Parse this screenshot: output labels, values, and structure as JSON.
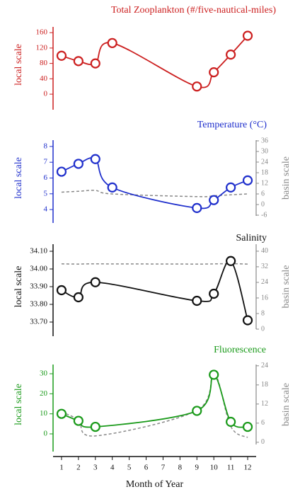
{
  "chart_data": [
    {
      "type": "line",
      "title": "Total Zooplankton (#/five-nautical-miles)",
      "ylabel": "local scale",
      "color": "#cc1f1f",
      "x": [
        1,
        2,
        3,
        4,
        9,
        10,
        11,
        12
      ],
      "ylim": [
        -22,
        175
      ],
      "yticks": [
        0,
        40,
        80,
        120,
        160
      ],
      "series": [
        {
          "color": "#cc1f1f",
          "values": [
            100,
            86,
            80,
            133,
            20,
            57,
            103,
            152
          ]
        }
      ]
    },
    {
      "type": "line",
      "title": "Temperature (°C)",
      "ylabel": "local scale",
      "y2label": "basin scale",
      "color": "#1f2fcc",
      "x": [
        1,
        2,
        3,
        4,
        9,
        10,
        11,
        12
      ],
      "ylim": [
        3.6,
        8.4
      ],
      "yticks": [
        4,
        5,
        6,
        7,
        8
      ],
      "y2lim": [
        -6.4,
        36.4
      ],
      "y2ticks": [
        -6,
        0,
        6,
        12,
        18,
        24,
        30,
        36
      ],
      "series": [
        {
          "color": "#1f2fcc",
          "values": [
            6.4,
            6.9,
            7.2,
            5.4,
            4.1,
            4.6,
            5.4,
            5.85
          ]
        },
        {
          "color": "#888888",
          "style": "dashed",
          "axis": "y2",
          "values": [
            7,
            7.5,
            8,
            6,
            4.5,
            5,
            5.5,
            6
          ]
        }
      ]
    },
    {
      "type": "line",
      "title": "Salinity",
      "ylabel": "local scale",
      "y2label": "basin scale",
      "color": "#111111",
      "x": [
        1,
        2,
        3,
        9,
        10,
        11,
        12
      ],
      "ylim": [
        33.66,
        34.14
      ],
      "yticks": [
        {
          "value": 33.7,
          "label": "33.70"
        },
        {
          "value": 33.8,
          "label": "33.80"
        },
        {
          "value": 33.9,
          "label": "33.90"
        },
        {
          "value": 34,
          "label": "34.00"
        },
        {
          "value": 34.1,
          "label": "34.10"
        }
      ],
      "y2lim": [
        0,
        43.6
      ],
      "y2ticks": [
        0,
        8,
        16,
        24,
        32,
        40
      ],
      "series": [
        {
          "color": "#111111",
          "values": [
            33.88,
            33.84,
            33.925,
            33.82,
            33.86,
            34.045,
            33.71
          ]
        },
        {
          "color": "#888888",
          "style": "dashed",
          "axis": "y2",
          "values": [
            33.5,
            33.4,
            33.5,
            33.4,
            33.5,
            33.6,
            33.4
          ]
        }
      ]
    },
    {
      "type": "line",
      "title": "Fluorescence",
      "ylabel": "local scale",
      "y2label": "basin scale",
      "color": "#1a9a1a",
      "x": [
        1,
        2,
        3,
        9,
        10,
        11,
        12
      ],
      "ylim": [
        -5.3,
        34.6
      ],
      "yticks": [
        0,
        10,
        20,
        30
      ],
      "y2lim": [
        -0.7,
        24.4
      ],
      "y2ticks": [
        0,
        6,
        12,
        18,
        24
      ],
      "xlim": [
        0.5,
        12.5
      ],
      "xticks": [
        1,
        2,
        3,
        4,
        5,
        6,
        7,
        8,
        9,
        10,
        11,
        12
      ],
      "xlabel": "Month of Year",
      "series": [
        {
          "color": "#1a9a1a",
          "values": [
            10,
            6.5,
            3.5,
            11.5,
            29.5,
            6,
            3.5
          ]
        },
        {
          "color": "#888888",
          "style": "dashed",
          "axis": "y2",
          "values": [
            9.5,
            7,
            2,
            10,
            22,
            5,
            1.5
          ]
        }
      ]
    }
  ]
}
